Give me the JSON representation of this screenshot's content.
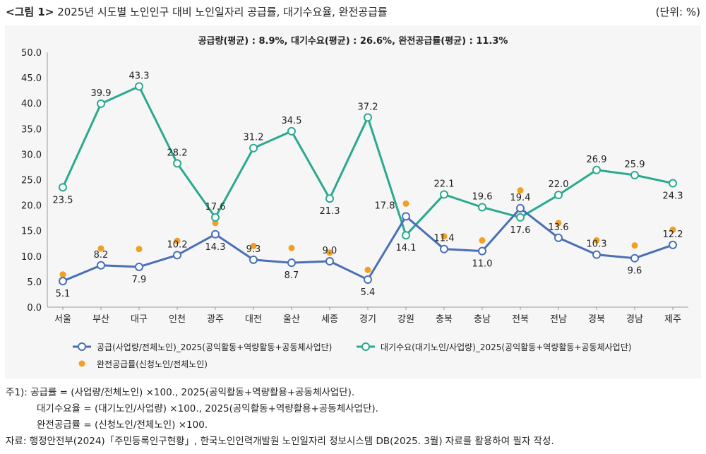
{
  "figure": {
    "label": "<그림 1>",
    "title": "2025년 시도별 노인인구 대비 노인일자리 공급률, 대기수요율, 완전공급률",
    "unit": "(단위: %)"
  },
  "chart_data": {
    "type": "line",
    "subtitle": "공급량(평균) : 8.9%, 대기수요(평균) : 26.6%, 완전공급률(평균) : 11.3%",
    "categories": [
      "서울",
      "부산",
      "대구",
      "인천",
      "광주",
      "대전",
      "울산",
      "세종",
      "경기",
      "강원",
      "충북",
      "충남",
      "전북",
      "전남",
      "경북",
      "경남",
      "제주"
    ],
    "ylim": [
      0,
      50
    ],
    "yticks": [
      "0.0",
      "5.0",
      "10.0",
      "15.0",
      "20.0",
      "25.0",
      "30.0",
      "35.0",
      "40.0",
      "45.0",
      "50.0"
    ],
    "grid": false,
    "legend_position": "bottom",
    "series": [
      {
        "name": "공급(사업량/전체노인)_2025(공익활동+역량활동+공동체사업단)",
        "kind": "line",
        "color": "#4a6fb5",
        "values": [
          5.1,
          8.2,
          7.9,
          10.2,
          14.3,
          9.3,
          8.7,
          9.0,
          5.4,
          17.8,
          11.4,
          11.0,
          19.4,
          13.6,
          10.3,
          9.6,
          12.2
        ],
        "labels": [
          "5.1",
          "8.2",
          "7.9",
          "10.2",
          "14.3",
          "9.3",
          "8.7",
          "9.0",
          "5.4",
          "17.8",
          "11.4",
          "11.0",
          "19.4",
          "13.6",
          "10.3",
          "9.6",
          "12.2"
        ]
      },
      {
        "name": "대기수요(대기노인/사업량)_2025(공익활동+역량활동+공동체사업단)",
        "kind": "line",
        "color": "#2aa98e",
        "values": [
          23.5,
          39.9,
          43.3,
          28.2,
          17.6,
          31.2,
          34.5,
          21.3,
          37.2,
          14.1,
          22.1,
          19.6,
          17.6,
          22.0,
          26.9,
          25.9,
          24.3
        ],
        "labels": [
          "23.5",
          "39.9",
          "43.3",
          "28.2",
          "17.6",
          "31.2",
          "34.5",
          "21.3",
          "37.2",
          "14.1",
          "22.1",
          "19.6",
          "17.6",
          "22.0",
          "26.9",
          "25.9",
          "24.3"
        ]
      },
      {
        "name": "완전공급률(신청노인/전체노인)",
        "kind": "scatter",
        "color": "#f0a023",
        "values": [
          6.4,
          11.5,
          11.4,
          13.0,
          16.5,
          12.0,
          11.6,
          10.7,
          7.3,
          20.3,
          13.9,
          13.1,
          22.9,
          16.5,
          13.1,
          12.1,
          15.2
        ]
      }
    ]
  },
  "notes": {
    "line1": "주1): 공급률 = (사업량/전체노인) ×100., 2025(공익활동+역량활용+공동체사업단).",
    "line2": "대기수요율 = (대기노인/사업량) ×100., 2025(공익활동+역량활용+공동체사업단).",
    "line3": "완전공급률 = (신청노인/전체노인) ×100.",
    "source": "자료: 행정안전부(2024)「주민등록인구현황」, 한국노인인력개발원 노인일자리 정보시스템 DB(2025. 3월) 자료를 활용하여 필자 작성."
  }
}
